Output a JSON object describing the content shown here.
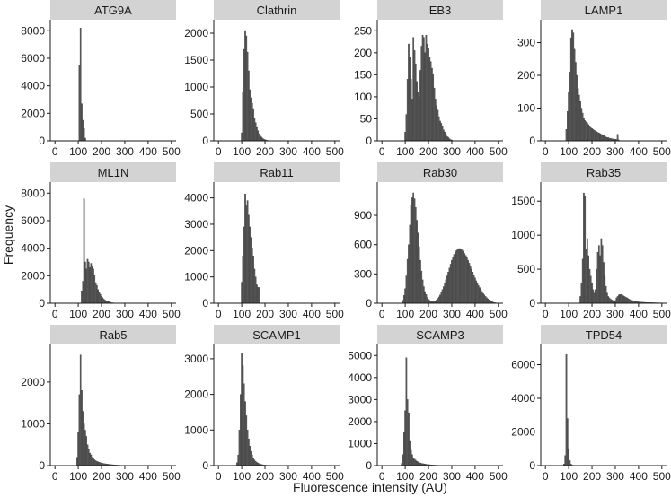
{
  "figure": {
    "xlabel": "Fluorescence intensity (AU)",
    "ylabel": "Frequency"
  },
  "colors": {
    "strip_background": "#d3d3d3",
    "bar_fill": "#595959",
    "bar_stroke": "#3a3a3a",
    "axis": "#1a1a1a"
  },
  "chart_data": [
    {
      "type": "bar",
      "title": "ATG9A",
      "x": [
        105,
        110,
        115,
        120,
        125,
        130
      ],
      "values": [
        5500,
        8200,
        2700,
        1500,
        900,
        200
      ],
      "bin_width": 5,
      "xlim": [
        -20,
        520
      ],
      "xticks": [
        0,
        100,
        200,
        300,
        400,
        500
      ],
      "ylim": [
        0,
        8800
      ],
      "yticks": [
        0,
        2000,
        4000,
        6000,
        8000
      ]
    },
    {
      "type": "bar",
      "title": "Clathrin",
      "x": [
        100,
        105,
        110,
        115,
        120,
        125,
        130,
        135,
        140,
        145,
        150,
        155,
        160,
        165,
        170,
        175,
        180,
        185,
        190,
        195,
        200,
        205,
        210,
        215,
        220
      ],
      "values": [
        150,
        900,
        1700,
        2050,
        1950,
        1650,
        1300,
        950,
        800,
        700,
        600,
        420,
        340,
        250,
        190,
        130,
        90,
        70,
        50,
        30,
        20,
        15,
        10,
        6,
        3
      ],
      "bin_width": 5,
      "xlim": [
        -20,
        520
      ],
      "xticks": [
        0,
        100,
        200,
        300,
        400,
        500
      ],
      "ylim": [
        0,
        2250
      ],
      "yticks": [
        0,
        500,
        1000,
        1500,
        2000
      ]
    },
    {
      "type": "bar",
      "title": "EB3",
      "x": [
        100,
        105,
        110,
        115,
        120,
        125,
        130,
        135,
        140,
        145,
        150,
        155,
        160,
        165,
        170,
        175,
        180,
        185,
        190,
        195,
        200,
        205,
        210,
        215,
        220,
        225,
        230,
        235,
        240,
        245,
        250,
        255,
        260,
        265,
        270,
        275,
        280,
        285,
        290,
        295,
        300
      ],
      "values": [
        20,
        60,
        140,
        220,
        190,
        140,
        95,
        235,
        205,
        175,
        135,
        110,
        100,
        160,
        215,
        240,
        235,
        200,
        240,
        220,
        210,
        190,
        180,
        165,
        150,
        120,
        95,
        80,
        70,
        55,
        45,
        40,
        32,
        25,
        20,
        15,
        10,
        8,
        5,
        3,
        2
      ],
      "bin_width": 5,
      "xlim": [
        -20,
        520
      ],
      "xticks": [
        0,
        100,
        200,
        300,
        400,
        500
      ],
      "ylim": [
        0,
        275
      ],
      "yticks": [
        0,
        50,
        100,
        150,
        200,
        250
      ]
    },
    {
      "type": "bar",
      "title": "LAMP1",
      "x": [
        90,
        95,
        100,
        105,
        110,
        115,
        120,
        125,
        130,
        135,
        140,
        145,
        150,
        155,
        160,
        165,
        170,
        175,
        180,
        185,
        190,
        195,
        200,
        205,
        210,
        215,
        220,
        225,
        230,
        235,
        240,
        245,
        250,
        255,
        260,
        265,
        270,
        275,
        280,
        285,
        290,
        295,
        300,
        305,
        310,
        315
      ],
      "values": [
        35,
        90,
        150,
        210,
        315,
        340,
        330,
        280,
        240,
        200,
        160,
        140,
        120,
        100,
        85,
        70,
        62,
        58,
        55,
        50,
        45,
        40,
        38,
        35,
        32,
        30,
        28,
        26,
        24,
        22,
        20,
        18,
        16,
        14,
        12,
        10,
        10,
        8,
        8,
        6,
        6,
        5,
        5,
        4,
        20,
        3
      ],
      "bin_width": 5,
      "xlim": [
        -20,
        520
      ],
      "xticks": [
        0,
        100,
        200,
        300,
        400,
        500
      ],
      "ylim": [
        0,
        370
      ],
      "yticks": [
        0,
        100,
        200,
        300
      ]
    },
    {
      "type": "bar",
      "title": "ML1N",
      "x": [
        115,
        120,
        125,
        130,
        135,
        140,
        145,
        150,
        155,
        160,
        165,
        170,
        175,
        180,
        185,
        190,
        195,
        200,
        205,
        210,
        215,
        220,
        225,
        230,
        235,
        240,
        245,
        250,
        255,
        260,
        265
      ],
      "values": [
        900,
        1600,
        7600,
        3000,
        2500,
        3200,
        3000,
        2600,
        2900,
        2700,
        2500,
        2000,
        1500,
        1300,
        1000,
        800,
        650,
        500,
        400,
        300,
        230,
        180,
        140,
        110,
        80,
        60,
        40,
        30,
        20,
        15,
        10
      ],
      "bin_width": 5,
      "xlim": [
        -20,
        520
      ],
      "xticks": [
        0,
        100,
        200,
        300,
        400,
        500
      ],
      "ylim": [
        0,
        8800
      ],
      "yticks": [
        0,
        2000,
        4000,
        6000,
        8000
      ]
    },
    {
      "type": "bar",
      "title": "Rab11",
      "x": [
        100,
        105,
        110,
        115,
        120,
        125,
        130,
        135,
        140,
        145,
        150,
        155,
        160,
        165,
        170,
        175
      ],
      "values": [
        800,
        1800,
        2900,
        4150,
        3700,
        3900,
        3350,
        2900,
        2500,
        2100,
        1800,
        1300,
        1000,
        700,
        600,
        600
      ],
      "bin_width": 5,
      "xlim": [
        -20,
        520
      ],
      "xticks": [
        0,
        100,
        200,
        300,
        400,
        500
      ],
      "ylim": [
        0,
        4600
      ],
      "yticks": [
        0,
        1000,
        2000,
        3000,
        4000
      ]
    },
    {
      "type": "bar",
      "title": "Rab30",
      "x": [
        90,
        95,
        100,
        105,
        110,
        115,
        120,
        125,
        130,
        135,
        140,
        145,
        150,
        155,
        160,
        165,
        170,
        175,
        180,
        185,
        190,
        195,
        200,
        205,
        210,
        215,
        220,
        225,
        230,
        235,
        240,
        245,
        250,
        255,
        260,
        265,
        270,
        275,
        280,
        285,
        290,
        295,
        300,
        305,
        310,
        315,
        320,
        325,
        330,
        335,
        340,
        345,
        350,
        355,
        360,
        365,
        370,
        375,
        380,
        385,
        390,
        395,
        400,
        405,
        410,
        415,
        420,
        425,
        430,
        435,
        440,
        445,
        450,
        455,
        460,
        465,
        470,
        475,
        480,
        485,
        490,
        495
      ],
      "values": [
        30,
        80,
        150,
        280,
        450,
        600,
        800,
        1000,
        1080,
        1130,
        1070,
        980,
        850,
        720,
        580,
        440,
        330,
        240,
        170,
        120,
        90,
        60,
        40,
        30,
        20,
        15,
        15,
        20,
        25,
        35,
        50,
        65,
        85,
        110,
        140,
        170,
        200,
        240,
        280,
        320,
        360,
        400,
        440,
        470,
        500,
        520,
        540,
        555,
        560,
        560,
        555,
        545,
        530,
        510,
        490,
        470,
        440,
        410,
        380,
        350,
        320,
        290,
        260,
        230,
        205,
        180,
        160,
        140,
        120,
        100,
        85,
        70,
        58,
        46,
        36,
        28,
        20,
        14,
        9,
        6,
        4,
        2
      ],
      "bin_width": 5,
      "xlim": [
        -20,
        520
      ],
      "xticks": [
        0,
        100,
        200,
        300,
        400,
        500
      ],
      "ylim": [
        0,
        1240
      ],
      "yticks": [
        0,
        300,
        600,
        900
      ]
    },
    {
      "type": "bar",
      "title": "Rab35",
      "x": [
        150,
        155,
        160,
        165,
        170,
        175,
        180,
        185,
        190,
        195,
        200,
        205,
        210,
        215,
        220,
        225,
        230,
        235,
        240,
        245,
        250,
        255,
        260,
        265,
        270,
        275,
        280,
        285,
        290,
        295,
        300,
        305,
        310,
        315,
        320,
        325,
        330,
        335,
        340,
        345,
        350,
        355,
        360,
        365,
        370,
        375,
        380,
        385,
        390,
        395,
        400,
        405,
        410,
        415,
        420,
        425,
        430,
        435,
        440,
        445,
        450,
        455,
        460,
        465,
        470,
        475,
        480,
        485,
        490,
        495
      ],
      "values": [
        100,
        300,
        650,
        1620,
        1580,
        800,
        950,
        700,
        500,
        400,
        300,
        200,
        150,
        200,
        500,
        750,
        850,
        700,
        950,
        850,
        600,
        400,
        250,
        150,
        100,
        80,
        60,
        50,
        40,
        40,
        40,
        80,
        100,
        120,
        130,
        130,
        120,
        110,
        100,
        90,
        80,
        70,
        60,
        50,
        45,
        40,
        35,
        30,
        25,
        22,
        20,
        18,
        16,
        15,
        14,
        13,
        12,
        11,
        10,
        10,
        9,
        9,
        8,
        8,
        7,
        7,
        6,
        6,
        5,
        5
      ],
      "bin_width": 5,
      "xlim": [
        -20,
        520
      ],
      "xticks": [
        0,
        100,
        200,
        300,
        400,
        500
      ],
      "ylim": [
        0,
        1780
      ],
      "yticks": [
        0,
        500,
        1000,
        1500
      ]
    },
    {
      "type": "bar",
      "title": "Rab5",
      "x": [
        95,
        100,
        105,
        110,
        115,
        120,
        125,
        130,
        135,
        140,
        145,
        150,
        155,
        160,
        165,
        170,
        175,
        180,
        185,
        190,
        195,
        200,
        205,
        210,
        215,
        220,
        225,
        230,
        235,
        240,
        245,
        250,
        255,
        260,
        265,
        270,
        275,
        280,
        285,
        290,
        295,
        300
      ],
      "values": [
        200,
        800,
        1700,
        2650,
        1800,
        1300,
        1000,
        850,
        700,
        500,
        400,
        300,
        260,
        200,
        170,
        140,
        120,
        100,
        90,
        80,
        70,
        60,
        55,
        50,
        45,
        40,
        36,
        32,
        28,
        25,
        22,
        20,
        17,
        15,
        13,
        11,
        10,
        8,
        7,
        6,
        5,
        4
      ],
      "bin_width": 5,
      "xlim": [
        -20,
        520
      ],
      "xticks": [
        0,
        100,
        200,
        300,
        400,
        500
      ],
      "ylim": [
        0,
        2900
      ],
      "yticks": [
        0,
        1000,
        2000
      ]
    },
    {
      "type": "bar",
      "title": "SCAMP1",
      "x": [
        80,
        85,
        90,
        95,
        100,
        105,
        110,
        115,
        120,
        125,
        130,
        135,
        140,
        145,
        150,
        155,
        160,
        165,
        170,
        175,
        180,
        185,
        190,
        195,
        200,
        205,
        210,
        215,
        220,
        225,
        230
      ],
      "values": [
        80,
        300,
        1000,
        2000,
        3150,
        2800,
        2300,
        1800,
        1400,
        1000,
        750,
        550,
        400,
        300,
        220,
        160,
        120,
        90,
        70,
        55,
        40,
        30,
        25,
        20,
        15,
        12,
        10,
        8,
        6,
        5,
        4
      ],
      "bin_width": 5,
      "xlim": [
        -20,
        520
      ],
      "xticks": [
        0,
        100,
        200,
        300,
        400,
        500
      ],
      "ylim": [
        0,
        3400
      ],
      "yticks": [
        0,
        1000,
        2000,
        3000
      ]
    },
    {
      "type": "bar",
      "title": "SCAMP3",
      "x": [
        85,
        90,
        95,
        100,
        105,
        110,
        115,
        120,
        125,
        130,
        135,
        140,
        145,
        150,
        155,
        160,
        165,
        170,
        175,
        180,
        185,
        190,
        195,
        200,
        205,
        210,
        215,
        220,
        225,
        230,
        235,
        240,
        245,
        250,
        255,
        260,
        265,
        270,
        275,
        280,
        285,
        290,
        295,
        300
      ],
      "values": [
        100,
        500,
        1500,
        2500,
        4900,
        3000,
        2400,
        1100,
        700,
        500,
        350,
        300,
        250,
        200,
        170,
        140,
        120,
        100,
        90,
        80,
        70,
        60,
        50,
        45,
        40,
        35,
        30,
        25,
        22,
        20,
        18,
        15,
        12,
        10,
        9,
        8,
        7,
        6,
        5,
        4,
        3,
        3,
        2,
        2
      ],
      "bin_width": 5,
      "xlim": [
        -20,
        520
      ],
      "xticks": [
        0,
        100,
        200,
        300,
        400,
        500
      ],
      "ylim": [
        0,
        5500
      ],
      "yticks": [
        0,
        1000,
        2000,
        3000,
        4000,
        5000
      ]
    },
    {
      "type": "bar",
      "title": "TPD54",
      "x": [
        80,
        85,
        90,
        95,
        100,
        105,
        110,
        115
      ],
      "values": [
        100,
        600,
        6600,
        2800,
        1000,
        300,
        100,
        30
      ],
      "bin_width": 5,
      "xlim": [
        -20,
        520
      ],
      "xticks": [
        0,
        100,
        200,
        300,
        400,
        500
      ],
      "ylim": [
        0,
        7200
      ],
      "yticks": [
        0,
        2000,
        4000,
        6000
      ]
    }
  ]
}
